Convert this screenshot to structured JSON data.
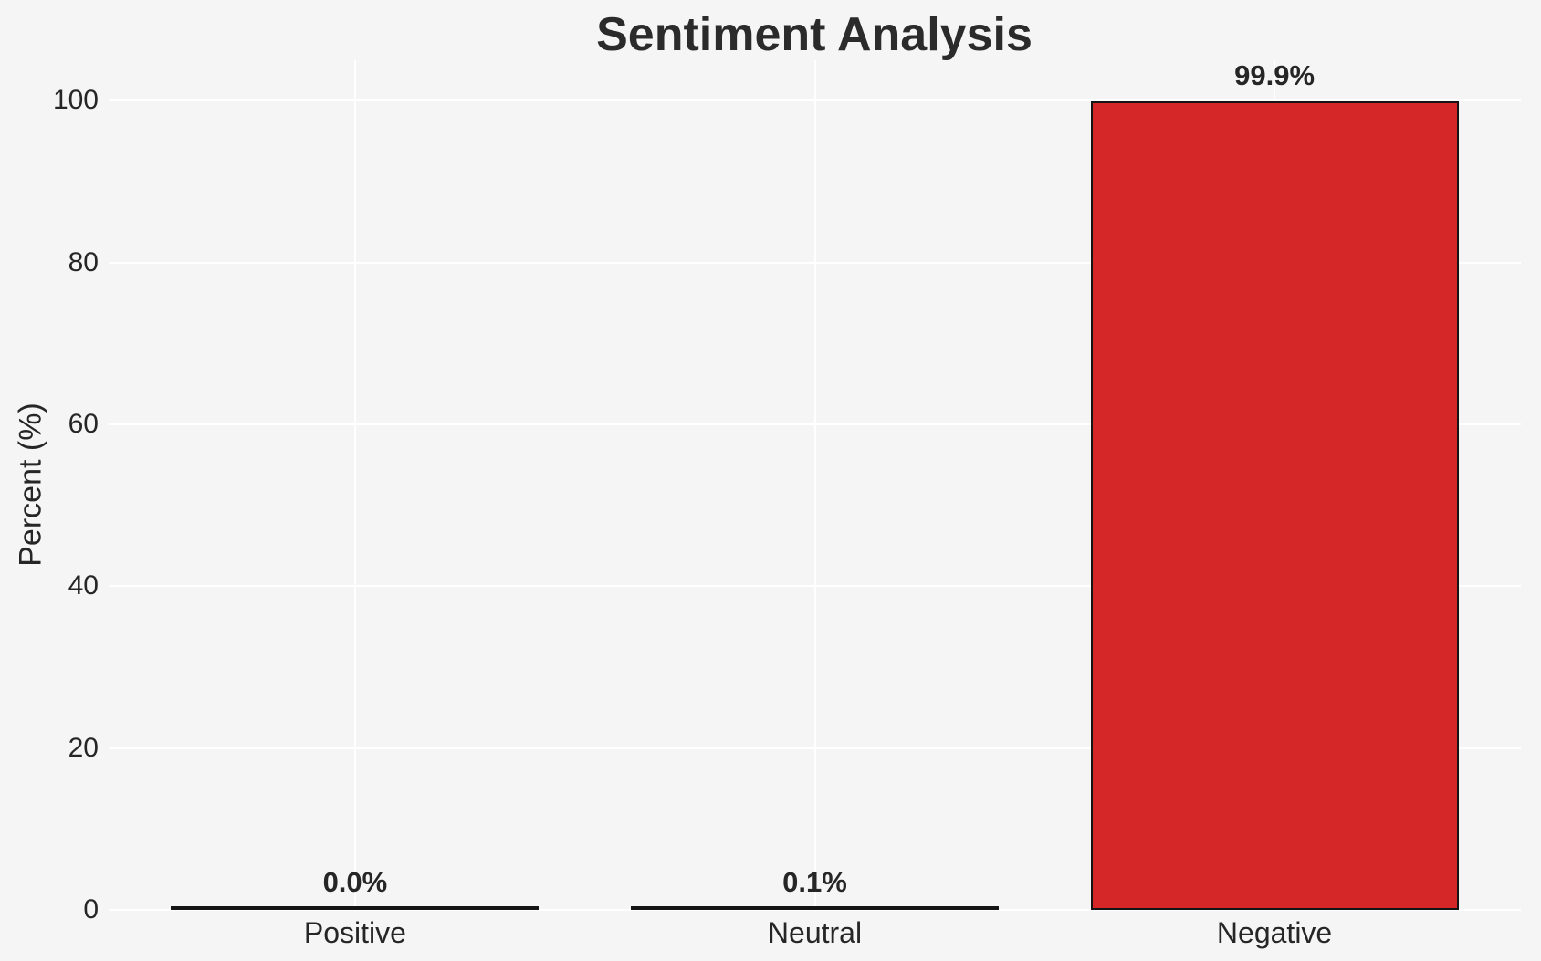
{
  "chart_data": {
    "type": "bar",
    "title": "Sentiment Analysis",
    "xlabel": "",
    "ylabel": "Percent (%)",
    "categories": [
      "Positive",
      "Neutral",
      "Negative"
    ],
    "values": [
      0.0,
      0.1,
      99.9
    ],
    "value_labels": [
      "0.0%",
      "0.1%",
      "99.9%"
    ],
    "ylim": [
      0,
      105
    ],
    "yticks": [
      0,
      20,
      40,
      60,
      80,
      100
    ],
    "grid": "on",
    "legend": "none",
    "bar_color": "#d62728",
    "bar_edge_color": "#151515",
    "background_color": "#f5f5f5",
    "gridline_color": "#ffffff",
    "text_color": "#262626"
  }
}
